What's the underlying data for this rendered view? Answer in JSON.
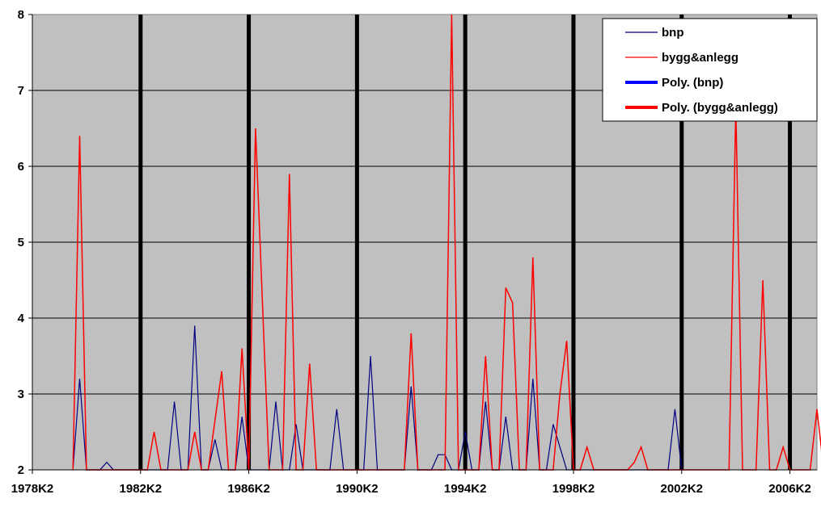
{
  "chart_data": {
    "type": "line",
    "title": "",
    "xlabel": "",
    "ylabel": "",
    "x_tick_labels": [
      "1978K2",
      "1982K2",
      "1986K2",
      "1990K2",
      "1994K2",
      "1998K2",
      "2002K2",
      "2006K2"
    ],
    "ylim": [
      2,
      8
    ],
    "y_ticks": [
      2,
      3,
      4,
      5,
      6,
      7,
      8
    ],
    "grid": "horizontal",
    "plot_background": "#c0c0c0",
    "legend_position": "top-right",
    "legend": [
      {
        "label": "bnp",
        "color": "#000080",
        "style": "thin"
      },
      {
        "label": "bygg&anlegg",
        "color": "#ff0000",
        "style": "thin"
      },
      {
        "label": "Poly. (bnp)",
        "color": "#0000ff",
        "style": "thick"
      },
      {
        "label": "Poly. (bygg&anlegg)",
        "color": "#ff0000",
        "style": "thick"
      }
    ],
    "vertical_markers": [
      "1982K2",
      "1986K2",
      "1990K2",
      "1994K2",
      "1998K2",
      "2002K2",
      "2006K2"
    ],
    "series": [
      {
        "name": "bnp",
        "color": "#000080",
        "points": [
          [
            "1979K4",
            2
          ],
          [
            "1980K1",
            3.2
          ],
          [
            "1980K2",
            2
          ],
          [
            "1980K4",
            2
          ],
          [
            "1981K1",
            2.1
          ],
          [
            "1981K2",
            2
          ],
          [
            "1983K2",
            2
          ],
          [
            "1983K3",
            2.9
          ],
          [
            "1983K4",
            2
          ],
          [
            "1984K1",
            2
          ],
          [
            "1984K2",
            3.9
          ],
          [
            "1984K3",
            2
          ],
          [
            "1984K4",
            2
          ],
          [
            "1985K1",
            2.4
          ],
          [
            "1985K2",
            2
          ],
          [
            "1985K4",
            2
          ],
          [
            "1986K1",
            2.7
          ],
          [
            "1986K2",
            2
          ],
          [
            "1987K1",
            2
          ],
          [
            "1987K2",
            2.9
          ],
          [
            "1987K3",
            2
          ],
          [
            "1987K4",
            2
          ],
          [
            "1988K1",
            2.6
          ],
          [
            "1988K2",
            2
          ],
          [
            "1989K2",
            2
          ],
          [
            "1989K3",
            2.8
          ],
          [
            "1989K4",
            2
          ],
          [
            "1990K3",
            2
          ],
          [
            "1990K4",
            3.5
          ],
          [
            "1991K1",
            2
          ],
          [
            "1992K1",
            2
          ],
          [
            "1992K2",
            3.1
          ],
          [
            "1992K3",
            2
          ],
          [
            "1993K1",
            2
          ],
          [
            "1993K2",
            2.2
          ],
          [
            "1993K3",
            2.2
          ],
          [
            "1993K4",
            2
          ],
          [
            "1994K1",
            2
          ],
          [
            "1994K2",
            2.5
          ],
          [
            "1994K3",
            2
          ],
          [
            "1994K4",
            2
          ],
          [
            "1995K1",
            2.9
          ],
          [
            "1995K2",
            2
          ],
          [
            "1995K3",
            2
          ],
          [
            "1995K4",
            2.7
          ],
          [
            "1996K1",
            2
          ],
          [
            "1996K3",
            2
          ],
          [
            "1996K4",
            3.2
          ],
          [
            "1997K1",
            2
          ],
          [
            "1997K2",
            2
          ],
          [
            "1997K3",
            2.6
          ],
          [
            "1997K4",
            2.3
          ],
          [
            "1998K1",
            2
          ],
          [
            "2001K4",
            2
          ],
          [
            "2002K1",
            2.8
          ],
          [
            "2002K2",
            2
          ]
        ]
      },
      {
        "name": "bygg&anlegg",
        "color": "#ff0000",
        "points": [
          [
            "1979K4",
            2
          ],
          [
            "1980K1",
            6.4
          ],
          [
            "1980K2",
            2
          ],
          [
            "1982K3",
            2
          ],
          [
            "1982K4",
            2.5
          ],
          [
            "1983K1",
            2
          ],
          [
            "1984K1",
            2
          ],
          [
            "1984K2",
            2.5
          ],
          [
            "1984K3",
            2
          ],
          [
            "1984K4",
            2
          ],
          [
            "1985K2",
            3.3
          ],
          [
            "1985K3",
            2
          ],
          [
            "1985K4",
            2
          ],
          [
            "1986K1",
            3.6
          ],
          [
            "1986K2",
            2
          ],
          [
            "1986K2",
            2
          ],
          [
            "1986K3",
            6.5
          ],
          [
            "1987K1",
            2
          ],
          [
            "1987K3",
            2
          ],
          [
            "1987K4",
            5.9
          ],
          [
            "1988K1",
            2
          ],
          [
            "1988K2",
            2
          ],
          [
            "1988K3",
            3.4
          ],
          [
            "1988K4",
            2
          ],
          [
            "1992K1",
            2
          ],
          [
            "1992K2",
            3.8
          ],
          [
            "1992K3",
            2
          ],
          [
            "1993K3",
            2
          ],
          [
            "1993K4",
            8
          ],
          [
            "1994K1",
            2
          ],
          [
            "1994K4",
            2
          ],
          [
            "1995K1",
            3.5
          ],
          [
            "1995K2",
            2
          ],
          [
            "1995K3",
            2
          ],
          [
            "1995K4",
            4.4
          ],
          [
            "1996K1",
            4.2
          ],
          [
            "1996K2",
            2
          ],
          [
            "1996K3",
            2
          ],
          [
            "1996K4",
            4.8
          ],
          [
            "1997K1",
            2
          ],
          [
            "1997K3",
            2
          ],
          [
            "1997K4",
            3
          ],
          [
            "1998K1",
            3.7
          ],
          [
            "1998K2",
            2
          ],
          [
            "1998K3",
            2
          ],
          [
            "1998K4",
            2.3
          ],
          [
            "1999K1",
            2
          ],
          [
            "2000K2",
            2
          ],
          [
            "2000K3",
            2.1
          ],
          [
            "2000K4",
            2.3
          ],
          [
            "2001K1",
            2
          ],
          [
            "2004K1",
            2
          ],
          [
            "2004K2",
            6.8
          ],
          [
            "2004K3",
            2
          ],
          [
            "2005K1",
            2
          ],
          [
            "2005K2",
            4.5
          ],
          [
            "2005K3",
            2
          ],
          [
            "2005K4",
            2
          ],
          [
            "2006K1",
            2.3
          ],
          [
            "2006K2",
            2
          ],
          [
            "2007K1",
            2
          ],
          [
            "2007K2",
            2.8
          ],
          [
            "2007K3",
            2
          ]
        ]
      }
    ]
  }
}
